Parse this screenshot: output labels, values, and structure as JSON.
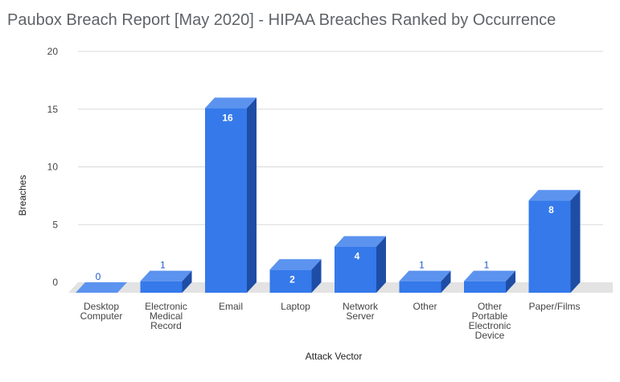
{
  "chart_data": {
    "type": "bar",
    "title": "Paubox Breach Report [May 2020] - HIPAA Breaches Ranked by Occurrence",
    "xlabel": "Attack Vector",
    "ylabel": "Breaches",
    "ylim": [
      0,
      20
    ],
    "yticks": [
      "0",
      "5",
      "10",
      "15",
      "20"
    ],
    "grid": true,
    "legend": "none",
    "style": "3d-bars",
    "colors": {
      "bar_front": "#3579ea",
      "bar_top": "#5b93ef",
      "bar_side": "#1e4da6",
      "floor": "#e3e3e3",
      "grid": "#d9d9d9"
    },
    "categories": [
      [
        "Desktop",
        "Computer"
      ],
      [
        "Electronic",
        "Medical",
        "Record"
      ],
      [
        "Email"
      ],
      [
        "Laptop"
      ],
      [
        "Network",
        "Server"
      ],
      [
        "Other"
      ],
      [
        "Other",
        "Portable",
        "Electronic",
        "Device"
      ],
      [
        "Paper/Films"
      ]
    ],
    "values": [
      0,
      1,
      16,
      2,
      4,
      1,
      1,
      8
    ],
    "data_labels": [
      "0",
      "1",
      "16",
      "2",
      "4",
      "1",
      "1",
      "8"
    ]
  }
}
